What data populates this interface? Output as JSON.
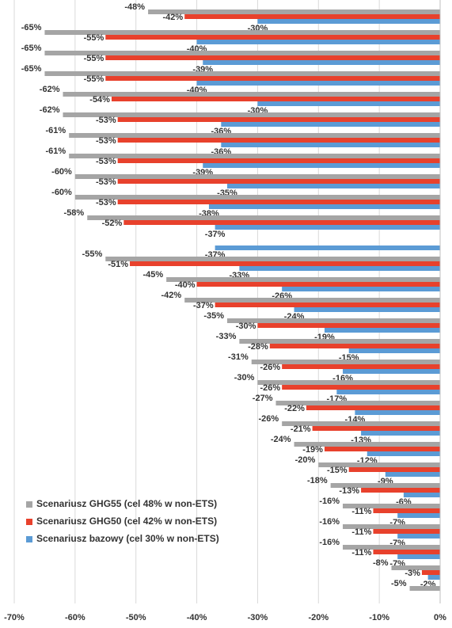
{
  "chart_data": {
    "type": "bar",
    "orientation": "horizontal",
    "categories": [
      null,
      null,
      null,
      null,
      null,
      null,
      null,
      null,
      null,
      null,
      null,
      null,
      null,
      null,
      null,
      null,
      null,
      null,
      null,
      null,
      null,
      null,
      null,
      null,
      null,
      null,
      null,
      null,
      null
    ],
    "series": [
      {
        "name": "Scenariusz GHG55 (cel 48% w non-ETS)",
        "color": "#a5a5a5",
        "values": [
          -48,
          -65,
          -65,
          -65,
          -62,
          -62,
          -61,
          -61,
          -60,
          -60,
          -58,
          null,
          -55,
          -45,
          -42,
          -35,
          -33,
          -31,
          -30,
          -27,
          -26,
          -24,
          -20,
          -18,
          -16,
          -16,
          -16,
          -8,
          -5
        ],
        "value_labels": [
          "-48%",
          "-65%",
          "-65%",
          "-65%",
          "-62%",
          "-62%",
          "-61%",
          "-61%",
          "-60%",
          "-60%",
          "-58%",
          null,
          "-55%",
          "-45%",
          "-42%",
          "-35%",
          "-33%",
          "-31%",
          "-30%",
          "-27%",
          "-26%",
          "-24%",
          "-20%",
          "-18%",
          "-16%",
          "-16%",
          "-16%",
          "-8%",
          "-5%"
        ]
      },
      {
        "name": "Scenariusz GHG50 (cel 42% w non-ETS)",
        "color": "#e8412c",
        "values": [
          -42,
          -55,
          -55,
          -55,
          -54,
          -53,
          -53,
          -53,
          -53,
          -53,
          -52,
          null,
          -51,
          -40,
          -37,
          -30,
          -28,
          -26,
          -26,
          -22,
          -21,
          -19,
          -15,
          -13,
          -11,
          -11,
          -11,
          -3,
          null
        ],
        "value_labels": [
          "-42%",
          "-55%",
          "-55%",
          "-55%",
          "-54%",
          "-53%",
          "-53%",
          "-53%",
          "-53%",
          "-53%",
          "-52%",
          null,
          "-51%",
          "-40%",
          "-37%",
          "-30%",
          "-28%",
          "-26%",
          "-26%",
          "-22%",
          "-21%",
          "-19%",
          "-15%",
          "-13%",
          "-11%",
          "-11%",
          "-11%",
          "-3%",
          null
        ]
      },
      {
        "name": "Scenariusz bazowy (cel 30% w non-ETS)",
        "color": "#5b9bd5",
        "values": [
          -30,
          -40,
          -39,
          -40,
          -30,
          -36,
          -36,
          -39,
          -35,
          -38,
          -37,
          -37,
          -33,
          -26,
          -24,
          -19,
          -15,
          -16,
          -17,
          -14,
          -13,
          -12,
          -9,
          -6,
          -7,
          -7,
          -7,
          -2,
          null
        ],
        "value_labels": [
          "-30%",
          "-40%",
          "-39%",
          "-40%",
          "-30%",
          "-36%",
          "-36%",
          "-39%",
          "-35%",
          "-38%",
          "-37%",
          "-37%",
          "-33%",
          "-26%",
          "-24%",
          "-19%",
          "-15%",
          "-16%",
          "-17%",
          "-14%",
          "-13%",
          "-12%",
          "-9%",
          "-6%",
          "-7%",
          "-7%",
          "-7%",
          "-2%",
          null
        ]
      }
    ],
    "xlim": [
      -70,
      0
    ],
    "xticks": [
      {
        "value": -70,
        "label": "-70%"
      },
      {
        "value": -60,
        "label": "-60%"
      },
      {
        "value": -50,
        "label": "-50%"
      },
      {
        "value": -40,
        "label": "-40%"
      },
      {
        "value": -30,
        "label": "-30%"
      },
      {
        "value": -20,
        "label": "-20%"
      },
      {
        "value": -10,
        "label": "-10%"
      },
      {
        "value": 0,
        "label": "0%"
      }
    ],
    "grid": true,
    "legend": "lower left"
  }
}
